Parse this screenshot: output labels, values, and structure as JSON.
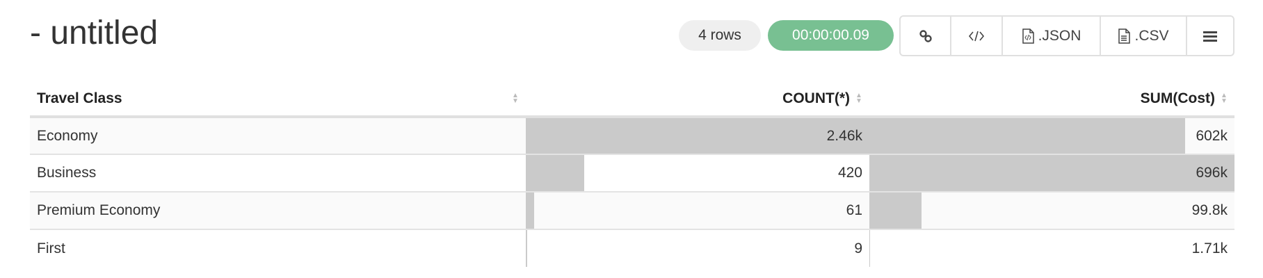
{
  "title": "- untitled",
  "status": {
    "rows": "4 rows",
    "elapsed": "00:00:00.09",
    "elapsed_color": "#78c092"
  },
  "toolbar": [
    {
      "icon": "link-icon",
      "label": ""
    },
    {
      "icon": "code-icon",
      "label": ""
    },
    {
      "icon": "json-file-icon",
      "label": ".JSON"
    },
    {
      "icon": "csv-file-icon",
      "label": ".CSV"
    },
    {
      "icon": "menu-icon",
      "label": ""
    }
  ],
  "table": {
    "columns": [
      "Travel Class",
      "COUNT(*)",
      "SUM(Cost)"
    ],
    "rows": [
      {
        "class": "Economy",
        "count": "2.46k",
        "count_value": 2460,
        "sum": "602k",
        "sum_value": 602000
      },
      {
        "class": "Business",
        "count": "420",
        "count_value": 420,
        "sum": "696k",
        "sum_value": 696000
      },
      {
        "class": "Premium Economy",
        "count": "61",
        "count_value": 61,
        "sum": "99.8k",
        "sum_value": 99800
      },
      {
        "class": "First",
        "count": "9",
        "count_value": 9,
        "sum": "1.71k",
        "sum_value": 1710
      }
    ]
  }
}
